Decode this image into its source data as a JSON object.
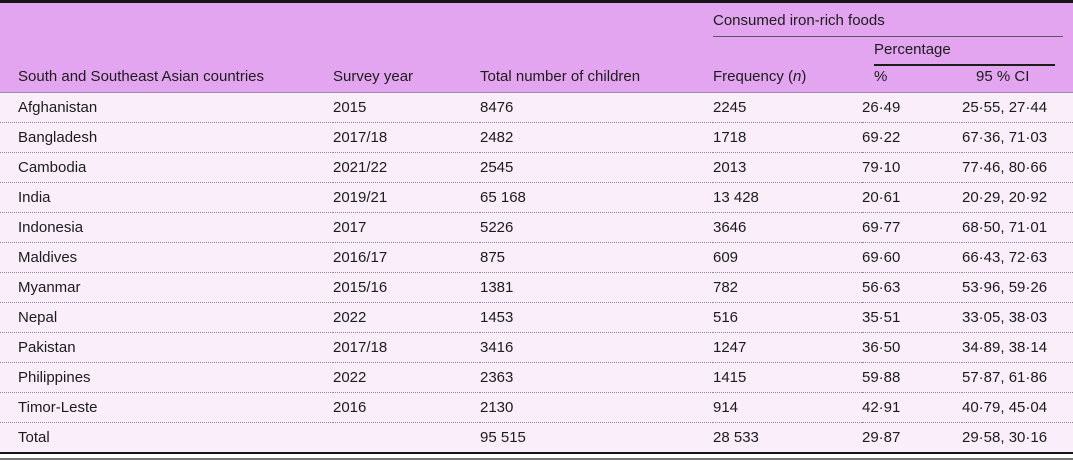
{
  "colors": {
    "header_bg": "#e3a4f0",
    "row_bg": "#faeefb",
    "text": "#1c1c1c",
    "dotted_separator": "#8b8b8b"
  },
  "table": {
    "spanners": {
      "group": "Consumed iron-rich foods",
      "subgroup": "Percentage"
    },
    "columns": {
      "country": "South and Southeast Asian countries",
      "survey_year": "Survey year",
      "total_children": "Total number of children",
      "frequency_pre": "Frequency (",
      "frequency_n": "n",
      "frequency_post": ")",
      "percent": "%",
      "ci": "95 % CI"
    },
    "rows": [
      {
        "country": "Afghanistan",
        "year": "2015",
        "total": "8476",
        "freq": "2245",
        "pct": "26·49",
        "ci": "25·55, 27·44"
      },
      {
        "country": "Bangladesh",
        "year": "2017/18",
        "total": "2482",
        "freq": "1718",
        "pct": "69·22",
        "ci": "67·36, 71·03"
      },
      {
        "country": "Cambodia",
        "year": "2021/22",
        "total": "2545",
        "freq": "2013",
        "pct": "79·10",
        "ci": "77·46, 80·66"
      },
      {
        "country": "India",
        "year": "2019/21",
        "total": "65 168",
        "freq": "13 428",
        "pct": "20·61",
        "ci": "20·29, 20·92"
      },
      {
        "country": "Indonesia",
        "year": "2017",
        "total": "5226",
        "freq": "3646",
        "pct": "69·77",
        "ci": "68·50, 71·01"
      },
      {
        "country": "Maldives",
        "year": "2016/17",
        "total": "875",
        "freq": "609",
        "pct": "69·60",
        "ci": "66·43, 72·63"
      },
      {
        "country": "Myanmar",
        "year": "2015/16",
        "total": "1381",
        "freq": "782",
        "pct": "56·63",
        "ci": "53·96, 59·26"
      },
      {
        "country": "Nepal",
        "year": "2022",
        "total": "1453",
        "freq": "516",
        "pct": "35·51",
        "ci": "33·05, 38·03"
      },
      {
        "country": "Pakistan",
        "year": "2017/18",
        "total": "3416",
        "freq": "1247",
        "pct": "36·50",
        "ci": "34·89, 38·14"
      },
      {
        "country": "Philippines",
        "year": "2022",
        "total": "2363",
        "freq": "1415",
        "pct": "59·88",
        "ci": "57·87, 61·86"
      },
      {
        "country": "Timor-Leste",
        "year": "2016",
        "total": "2130",
        "freq": "914",
        "pct": "42·91",
        "ci": "40·79, 45·04"
      },
      {
        "country": "Total",
        "year": "",
        "total": "95 515",
        "freq": "28 533",
        "pct": "29·87",
        "ci": "29·58, 30·16"
      }
    ]
  }
}
